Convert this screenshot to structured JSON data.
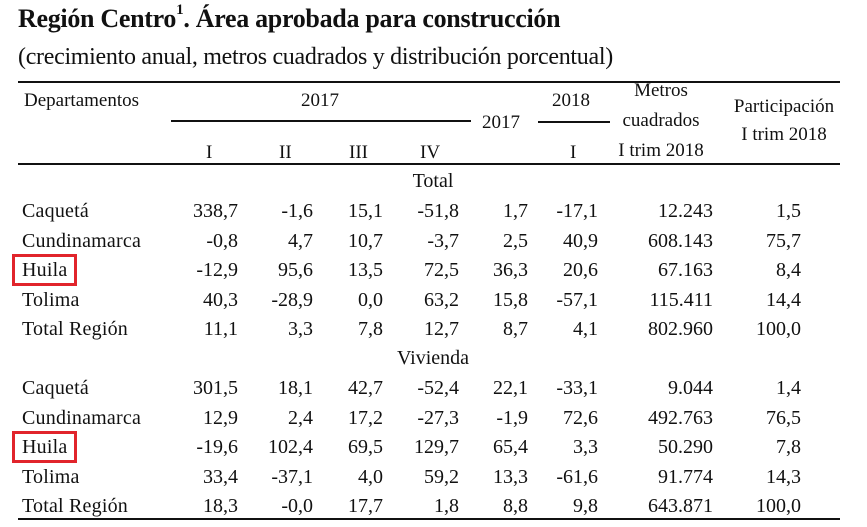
{
  "title": {
    "main": "Región Centro",
    "superscript": "1",
    "rest": ".  Área aprobada para construcción",
    "subtitle": "(crecimiento anual, metros cuadrados y distribución porcentual)"
  },
  "header": {
    "departamentos": "Departamentos",
    "year_2017": "2017",
    "quarters_2017": [
      "I",
      "II",
      "III",
      "IV"
    ],
    "annual_2017": "2017",
    "year_2018": "2018",
    "quarter_2018": "I",
    "metros_line1": "Metros",
    "metros_line2": "cuadrados",
    "metros_line3": "I trim 2018",
    "participacion_line1": "Participación",
    "participacion_line2": "I trim 2018"
  },
  "highlight_color": "#e1242b",
  "sections": [
    {
      "label": "Total",
      "rows": [
        {
          "name": "Caquetá",
          "highlighted": false,
          "values": [
            "338,7",
            "-1,6",
            "15,1",
            "-51,8",
            "1,7",
            "-17,1",
            "12.243",
            "1,5"
          ]
        },
        {
          "name": "Cundinamarca",
          "highlighted": false,
          "values": [
            "-0,8",
            "4,7",
            "10,7",
            "-3,7",
            "2,5",
            "40,9",
            "608.143",
            "75,7"
          ]
        },
        {
          "name": "Huila",
          "highlighted": true,
          "values": [
            "-12,9",
            "95,6",
            "13,5",
            "72,5",
            "36,3",
            "20,6",
            "67.163",
            "8,4"
          ]
        },
        {
          "name": "Tolima",
          "highlighted": false,
          "values": [
            "40,3",
            "-28,9",
            "0,0",
            "63,2",
            "15,8",
            "-57,1",
            "115.411",
            "14,4"
          ]
        },
        {
          "name": "Total Región",
          "highlighted": false,
          "values": [
            "11,1",
            "3,3",
            "7,8",
            "12,7",
            "8,7",
            "4,1",
            "802.960",
            "100,0"
          ]
        }
      ]
    },
    {
      "label": "Vivienda",
      "rows": [
        {
          "name": "Caquetá",
          "highlighted": false,
          "values": [
            "301,5",
            "18,1",
            "42,7",
            "-52,4",
            "22,1",
            "-33,1",
            "9.044",
            "1,4"
          ]
        },
        {
          "name": "Cundinamarca",
          "highlighted": false,
          "values": [
            "12,9",
            "2,4",
            "17,2",
            "-27,3",
            "-1,9",
            "72,6",
            "492.763",
            "76,5"
          ]
        },
        {
          "name": "Huila",
          "highlighted": true,
          "values": [
            "-19,6",
            "102,4",
            "69,5",
            "129,7",
            "65,4",
            "3,3",
            "50.290",
            "7,8"
          ]
        },
        {
          "name": "Tolima",
          "highlighted": false,
          "values": [
            "33,4",
            "-37,1",
            "4,0",
            "59,2",
            "13,3",
            "-61,6",
            "91.774",
            "14,3"
          ]
        },
        {
          "name": "Total Región",
          "highlighted": false,
          "values": [
            "18,3",
            "-0,0",
            "17,7",
            "1,8",
            "8,8",
            "9,8",
            "643.871",
            "100,0"
          ]
        }
      ]
    }
  ]
}
